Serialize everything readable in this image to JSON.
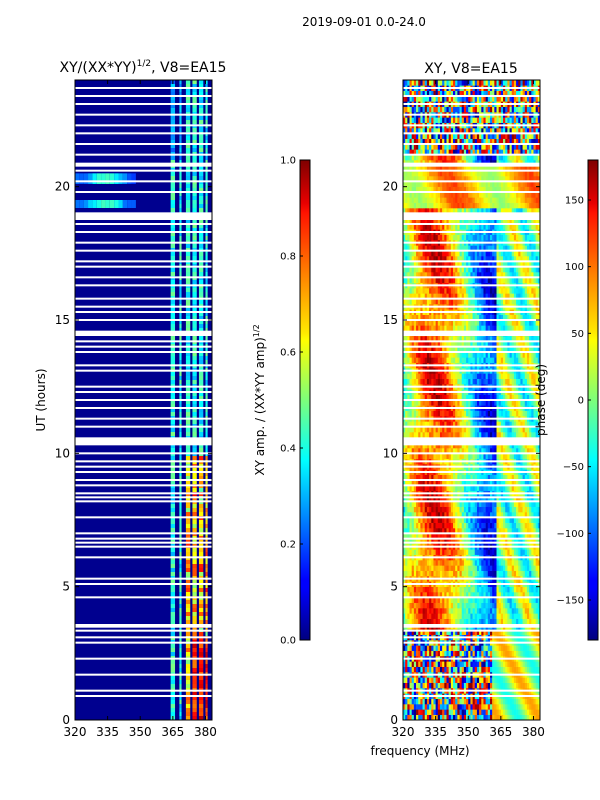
{
  "figure": {
    "suptitle": "2019-09-01 0.0-24.0",
    "xlabel": "frequency (MHz)"
  },
  "chart_data": [
    {
      "type": "heatmap",
      "title_main": "XY/(XX*YY)",
      "title_sup": "1/2",
      "title_tail": ", V8=EA15",
      "xlabel": "",
      "ylabel": "UT (hours)",
      "xlim": [
        320,
        383
      ],
      "ylim": [
        0,
        24
      ],
      "xticks": [
        "320",
        "335",
        "350",
        "365",
        "380"
      ],
      "xtick_values": [
        320,
        335,
        350,
        365,
        380
      ],
      "yticks": [
        "0",
        "5",
        "10",
        "15",
        "20"
      ],
      "ytick_values": [
        0,
        5,
        10,
        15,
        20
      ],
      "bright_channels_mhz": [
        [
          364,
          366
        ],
        [
          368,
          369
        ],
        [
          371,
          373
        ],
        [
          374,
          376
        ],
        [
          377,
          379
        ],
        [
          380,
          381
        ]
      ],
      "strong_bands": [
        [
          20.1,
          20.5
        ],
        [
          19.2,
          19.5
        ]
      ],
      "colorbar": {
        "label_main": "XY amp. / (XX*YY amp)",
        "label_sup": "1/2",
        "range": [
          0.0,
          1.0
        ],
        "ticks": [
          "0.0",
          "0.2",
          "0.4",
          "0.6",
          "0.8",
          "1.0"
        ],
        "tick_values": [
          0.0,
          0.2,
          0.4,
          0.6,
          0.8,
          1.0
        ]
      }
    },
    {
      "type": "heatmap",
      "title": "XY, V8=EA15",
      "xlabel": "",
      "ylabel": "",
      "xlim": [
        320,
        383
      ],
      "ylim": [
        0,
        24
      ],
      "xticks": [
        "320",
        "335",
        "350",
        "365",
        "380"
      ],
      "xtick_values": [
        320,
        335,
        350,
        365,
        380
      ],
      "yticks": [
        "0",
        "5",
        "10",
        "15",
        "20"
      ],
      "ytick_values": [
        0,
        5,
        10,
        15,
        20
      ],
      "colorbar": {
        "label": "phase (deg)",
        "range": [
          -180,
          180
        ],
        "ticks": [
          "150",
          "100",
          "50",
          "0",
          "−50",
          "−100",
          "−150"
        ],
        "tick_values": [
          150,
          100,
          50,
          0,
          -50,
          -100,
          -150
        ]
      }
    }
  ],
  "flagged_ut_hours": [
    0.9,
    1.1,
    1.7,
    2.3,
    2.9,
    3.1,
    3.35,
    3.5,
    4.6,
    5.1,
    5.3,
    6.1,
    6.5,
    6.65,
    6.8,
    7.0,
    7.6,
    8.2,
    8.35,
    8.5,
    8.8,
    9.0,
    9.3,
    9.5,
    9.7,
    10.0,
    10.4,
    11.0,
    11.3,
    11.7,
    12.0,
    12.3,
    12.5,
    13.1,
    13.3,
    13.8,
    14.0,
    14.2,
    15.0,
    15.3,
    15.5,
    15.8,
    16.3,
    16.6,
    17.0,
    17.2,
    17.6,
    17.9,
    18.3,
    18.6,
    19.0,
    19.8,
    20.2,
    20.6,
    21.2,
    21.6,
    22.0,
    22.3,
    22.7,
    23.1,
    23.4,
    23.7
  ],
  "flagged_ut_ranges": [
    [
      10.3,
      10.6
    ],
    [
      14.4,
      14.6
    ],
    [
      18.75,
      19.0
    ],
    [
      20.75,
      20.9
    ],
    [
      3.5,
      3.6
    ]
  ]
}
